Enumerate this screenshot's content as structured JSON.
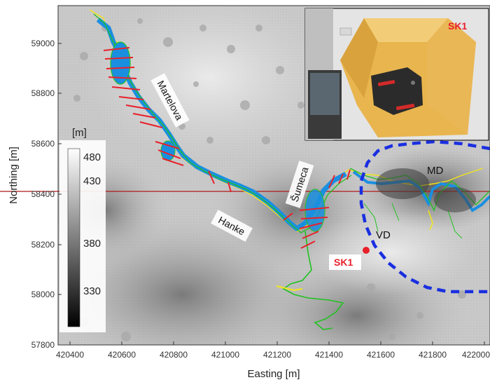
{
  "map": {
    "x_axis_label": "Easting [m]",
    "y_axis_label": "Northing [m]",
    "x_ticks": [
      "420400",
      "420600",
      "420800",
      "421000",
      "421200",
      "421400",
      "421600",
      "421800",
      "422000"
    ],
    "y_ticks": [
      "59000",
      "58800",
      "58600",
      "58400",
      "58200",
      "58000",
      "57800"
    ],
    "colorbar": {
      "unit": "[m]",
      "ticks": [
        "480",
        "430",
        "380",
        "330"
      ]
    },
    "streets": {
      "martelova": "Martelova",
      "sumeca": "Šumeca",
      "hanke": "Hanke"
    },
    "area_labels": {
      "md": "MD",
      "vd": "VD"
    },
    "station_label": "SK1",
    "inset_label": "SK1",
    "colors": {
      "cave_fill": "#1a8fe0",
      "cave_outline_green": "#1fc21f",
      "cave_outline_yellow": "#f2e61a",
      "cross_section": "#e8212b",
      "boundary": "#1a2fe0",
      "station": "#e8212b",
      "horizontal_line": "#b01818"
    }
  }
}
